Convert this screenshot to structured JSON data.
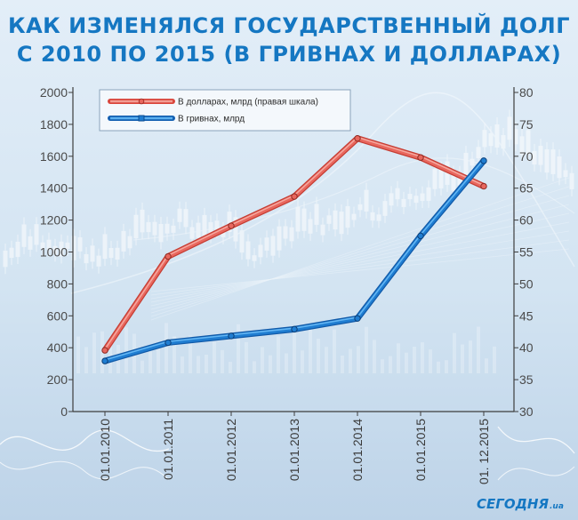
{
  "title_line1": "КАК ИЗМЕНЯЛСЯ ГОСУДАРСТВЕННЫЙ ДОЛГ",
  "title_line2": "С 2010 ПО 2015 (В ГРИВНАХ И ДОЛЛАРАХ)",
  "brand": "СЕГОДНЯ",
  "brand_suffix": ".ua",
  "colors": {
    "usd_series": "#e8675e",
    "uah_series": "#1f7dd1",
    "title": "#1577c2",
    "background": "#cfe0ef"
  },
  "chart_data": {
    "type": "line",
    "title": "КАК ИЗМЕНЯЛСЯ ГОСУДАРСТВЕННЫЙ ДОЛГ С 2010 ПО 2015 (В ГРИВНАХ И ДОЛЛАРАХ)",
    "categories": [
      "01.01.2010",
      "01.01.2011",
      "01.01.2012",
      "01.01.2013",
      "01.01.2014",
      "01.01.2015",
      "01. 12.2015"
    ],
    "y_left": {
      "ylim": [
        0,
        2000
      ],
      "ticks": [
        0,
        200,
        400,
        600,
        800,
        1000,
        1200,
        1400,
        1600,
        1800,
        2000
      ]
    },
    "y_right": {
      "ylim": [
        30,
        80
      ],
      "ticks": [
        30,
        35,
        40,
        45,
        50,
        55,
        60,
        65,
        70,
        75,
        80
      ]
    },
    "series": [
      {
        "name": "В долларах, млрд  (правая шкала)",
        "axis": "right",
        "color": "#e8675e",
        "values": [
          39.6,
          54.3,
          59.1,
          63.7,
          72.8,
          69.8,
          65.3
        ]
      },
      {
        "name": "В гривнах, млрд",
        "axis": "left",
        "color": "#1f7dd1",
        "values": [
          317,
          432,
          474,
          516,
          584,
          1101,
          1572
        ]
      }
    ],
    "legend_position": "top-left",
    "grid": false
  }
}
